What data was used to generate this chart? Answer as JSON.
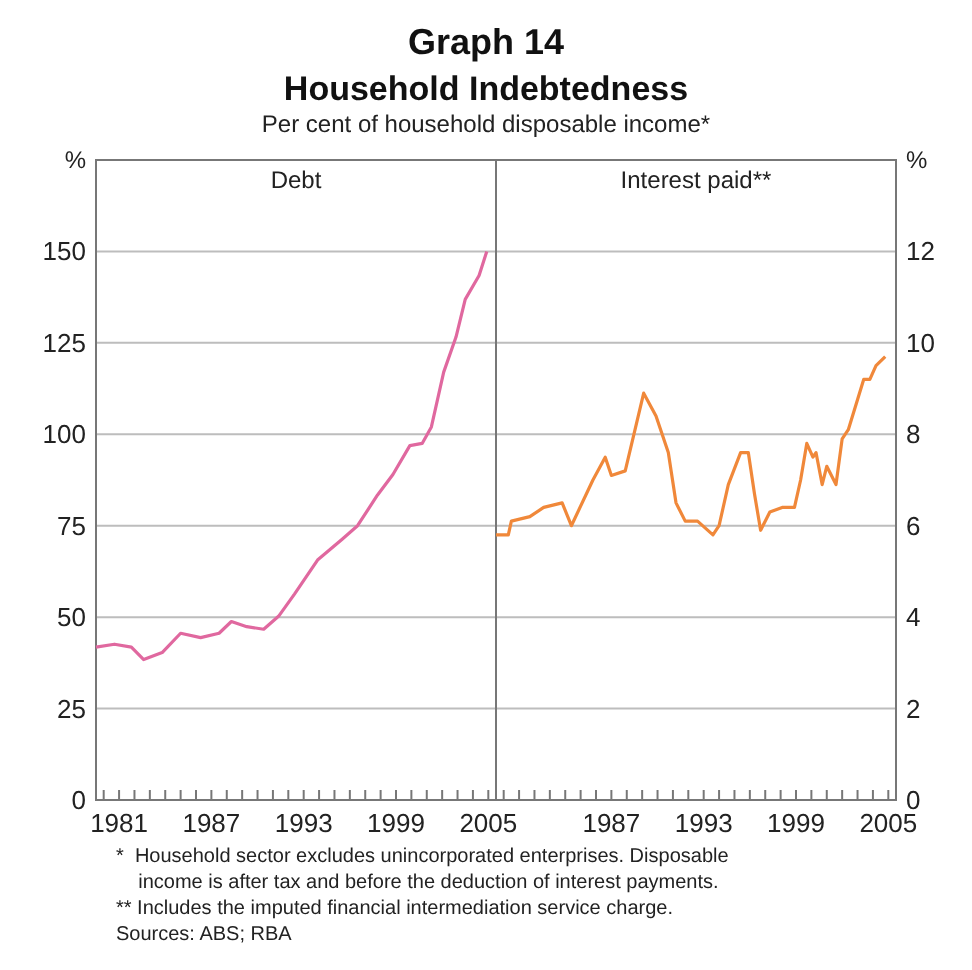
{
  "chart_data": [
    {
      "type": "line",
      "title": "Household Indebtedness",
      "subtitle": "Per cent of household disposable income*",
      "ylabel": "%",
      "annotations": [
        "Graph 14",
        "*  Household sector excludes unincorporated enterprises. Disposable",
        "    income is after tax and before the deduction of interest payments.",
        "** Includes the imputed financial intermediation service charge.",
        "Sources: ABS; RBA"
      ],
      "xlim": [
        1979.5,
        2005.5
      ],
      "xticks": [
        {
          "value": 1980,
          "label": null
        },
        {
          "value": 1981,
          "label": "1981"
        },
        {
          "value": 1982,
          "label": null
        },
        {
          "value": 1983,
          "label": null
        },
        {
          "value": 1984,
          "label": null
        },
        {
          "value": 1985,
          "label": null
        },
        {
          "value": 1986,
          "label": null
        },
        {
          "value": 1987,
          "label": "1987"
        },
        {
          "value": 1988,
          "label": null
        },
        {
          "value": 1989,
          "label": null
        },
        {
          "value": 1990,
          "label": null
        },
        {
          "value": 1991,
          "label": null
        },
        {
          "value": 1992,
          "label": null
        },
        {
          "value": 1993,
          "label": "1993"
        },
        {
          "value": 1994,
          "label": null
        },
        {
          "value": 1995,
          "label": null
        },
        {
          "value": 1996,
          "label": null
        },
        {
          "value": 1997,
          "label": null
        },
        {
          "value": 1998,
          "label": null
        },
        {
          "value": 1999,
          "label": "1999"
        },
        {
          "value": 2000,
          "label": null
        },
        {
          "value": 2001,
          "label": null
        },
        {
          "value": 2002,
          "label": null
        },
        {
          "value": 2003,
          "label": null
        },
        {
          "value": 2004,
          "label": null
        },
        {
          "value": 2005,
          "label": "2005"
        }
      ],
      "ylim": [
        0,
        175
      ],
      "yticks": [
        0,
        25,
        50,
        75,
        100,
        125,
        150
      ],
      "grid": "y",
      "series": [
        {
          "name": "Debt",
          "color": "#e0689f",
          "x": [
            1979.5,
            1980.7,
            1981.8,
            1982.6,
            1983.8,
            1985.0,
            1986.3,
            1987.5,
            1988.3,
            1989.3,
            1990.4,
            1991.4,
            1992.4,
            1993.9,
            1995.5,
            1996.5,
            1997.8,
            1998.8,
            1999.9,
            2000.7,
            2001.3,
            2002.1,
            2002.9,
            2003.5,
            2004.4,
            2004.9
          ],
          "values": [
            41.8,
            42.6,
            41.8,
            38.4,
            40.3,
            45.6,
            44.4,
            45.6,
            48.8,
            47.4,
            46.7,
            50.4,
            56.3,
            65.6,
            71.3,
            75,
            83.4,
            89,
            96.9,
            97.5,
            102,
            117,
            126.6,
            136.9,
            143.4,
            150
          ]
        }
      ]
    },
    {
      "type": "line",
      "y2label": "%",
      "xlim": [
        1979.5,
        2005.5
      ],
      "xticks": [
        {
          "value": 1980,
          "label": null
        },
        {
          "value": 1981,
          "label": null
        },
        {
          "value": 1982,
          "label": null
        },
        {
          "value": 1983,
          "label": null
        },
        {
          "value": 1984,
          "label": null
        },
        {
          "value": 1985,
          "label": null
        },
        {
          "value": 1986,
          "label": null
        },
        {
          "value": 1987,
          "label": "1987"
        },
        {
          "value": 1988,
          "label": null
        },
        {
          "value": 1989,
          "label": null
        },
        {
          "value": 1990,
          "label": null
        },
        {
          "value": 1991,
          "label": null
        },
        {
          "value": 1992,
          "label": null
        },
        {
          "value": 1993,
          "label": "1993"
        },
        {
          "value": 1994,
          "label": null
        },
        {
          "value": 1995,
          "label": null
        },
        {
          "value": 1996,
          "label": null
        },
        {
          "value": 1997,
          "label": null
        },
        {
          "value": 1998,
          "label": null
        },
        {
          "value": 1999,
          "label": "1999"
        },
        {
          "value": 2000,
          "label": null
        },
        {
          "value": 2001,
          "label": null
        },
        {
          "value": 2002,
          "label": null
        },
        {
          "value": 2003,
          "label": null
        },
        {
          "value": 2004,
          "label": null
        },
        {
          "value": 2005,
          "label": "2005"
        }
      ],
      "y2lim": [
        0,
        14
      ],
      "y2ticks": [
        0,
        2,
        4,
        6,
        8,
        10,
        12
      ],
      "grid": "y",
      "series": [
        {
          "name": "Interest paid**",
          "color": "#f0883a",
          "axis": "y2",
          "x": [
            1979.5,
            1980.3,
            1980.5,
            1981.7,
            1982.6,
            1983.8,
            1984.4,
            1985.8,
            1986.6,
            1987.0,
            1987.9,
            1989.1,
            1989.9,
            1990.7,
            1991.2,
            1991.8,
            1992.6,
            1993.6,
            1994.0,
            1994.6,
            1995.4,
            1995.9,
            1996.3,
            1996.7,
            1997.3,
            1998.1,
            1998.9,
            1999.3,
            1999.7,
            2000.1,
            2000.3,
            2000.7,
            2001.0,
            2001.6,
            2002.0,
            2002.4,
            2003.4,
            2003.8,
            2004.2,
            2004.8
          ],
          "values": [
            5.8,
            5.8,
            6.1,
            6.2,
            6.4,
            6.5,
            6.0,
            7.0,
            7.5,
            7.1,
            7.2,
            8.9,
            8.4,
            7.6,
            6.5,
            6.1,
            6.1,
            5.8,
            6.0,
            6.9,
            7.6,
            7.6,
            6.7,
            5.9,
            6.3,
            6.4,
            6.4,
            7.0,
            7.8,
            7.5,
            7.6,
            6.9,
            7.3,
            6.9,
            7.9,
            8.1,
            9.2,
            9.2,
            9.5,
            9.7
          ]
        }
      ]
    }
  ]
}
